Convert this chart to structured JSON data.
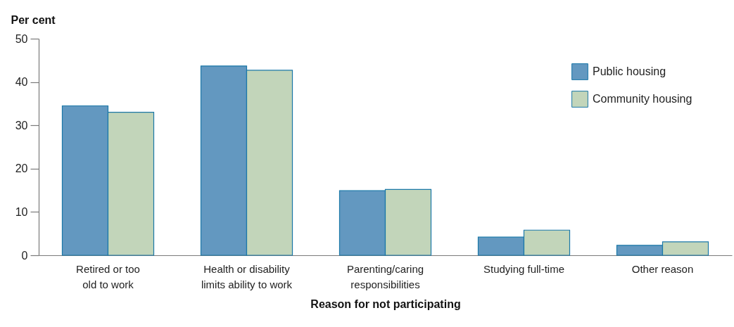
{
  "chart_data": {
    "type": "bar",
    "xlabel": "Reason for not participating",
    "ylabel": "Per cent",
    "categories": [
      "Retired or too old to work",
      "Health or disability limits ability to work",
      "Parenting/caring responsibilities",
      "Studying full-time",
      "Other reason"
    ],
    "series": [
      {
        "name": "Public housing",
        "color": "#6398c0",
        "values": [
          34.5,
          43.7,
          14.9,
          4.2,
          2.3
        ]
      },
      {
        "name": "Community housing",
        "color": "#c2d5ba",
        "values": [
          33.0,
          42.7,
          15.2,
          5.8,
          3.1
        ]
      }
    ],
    "ylim": [
      0,
      50
    ],
    "yticks": [
      0,
      10,
      20,
      30,
      40,
      50
    ],
    "grid": false,
    "legend": "top right"
  }
}
